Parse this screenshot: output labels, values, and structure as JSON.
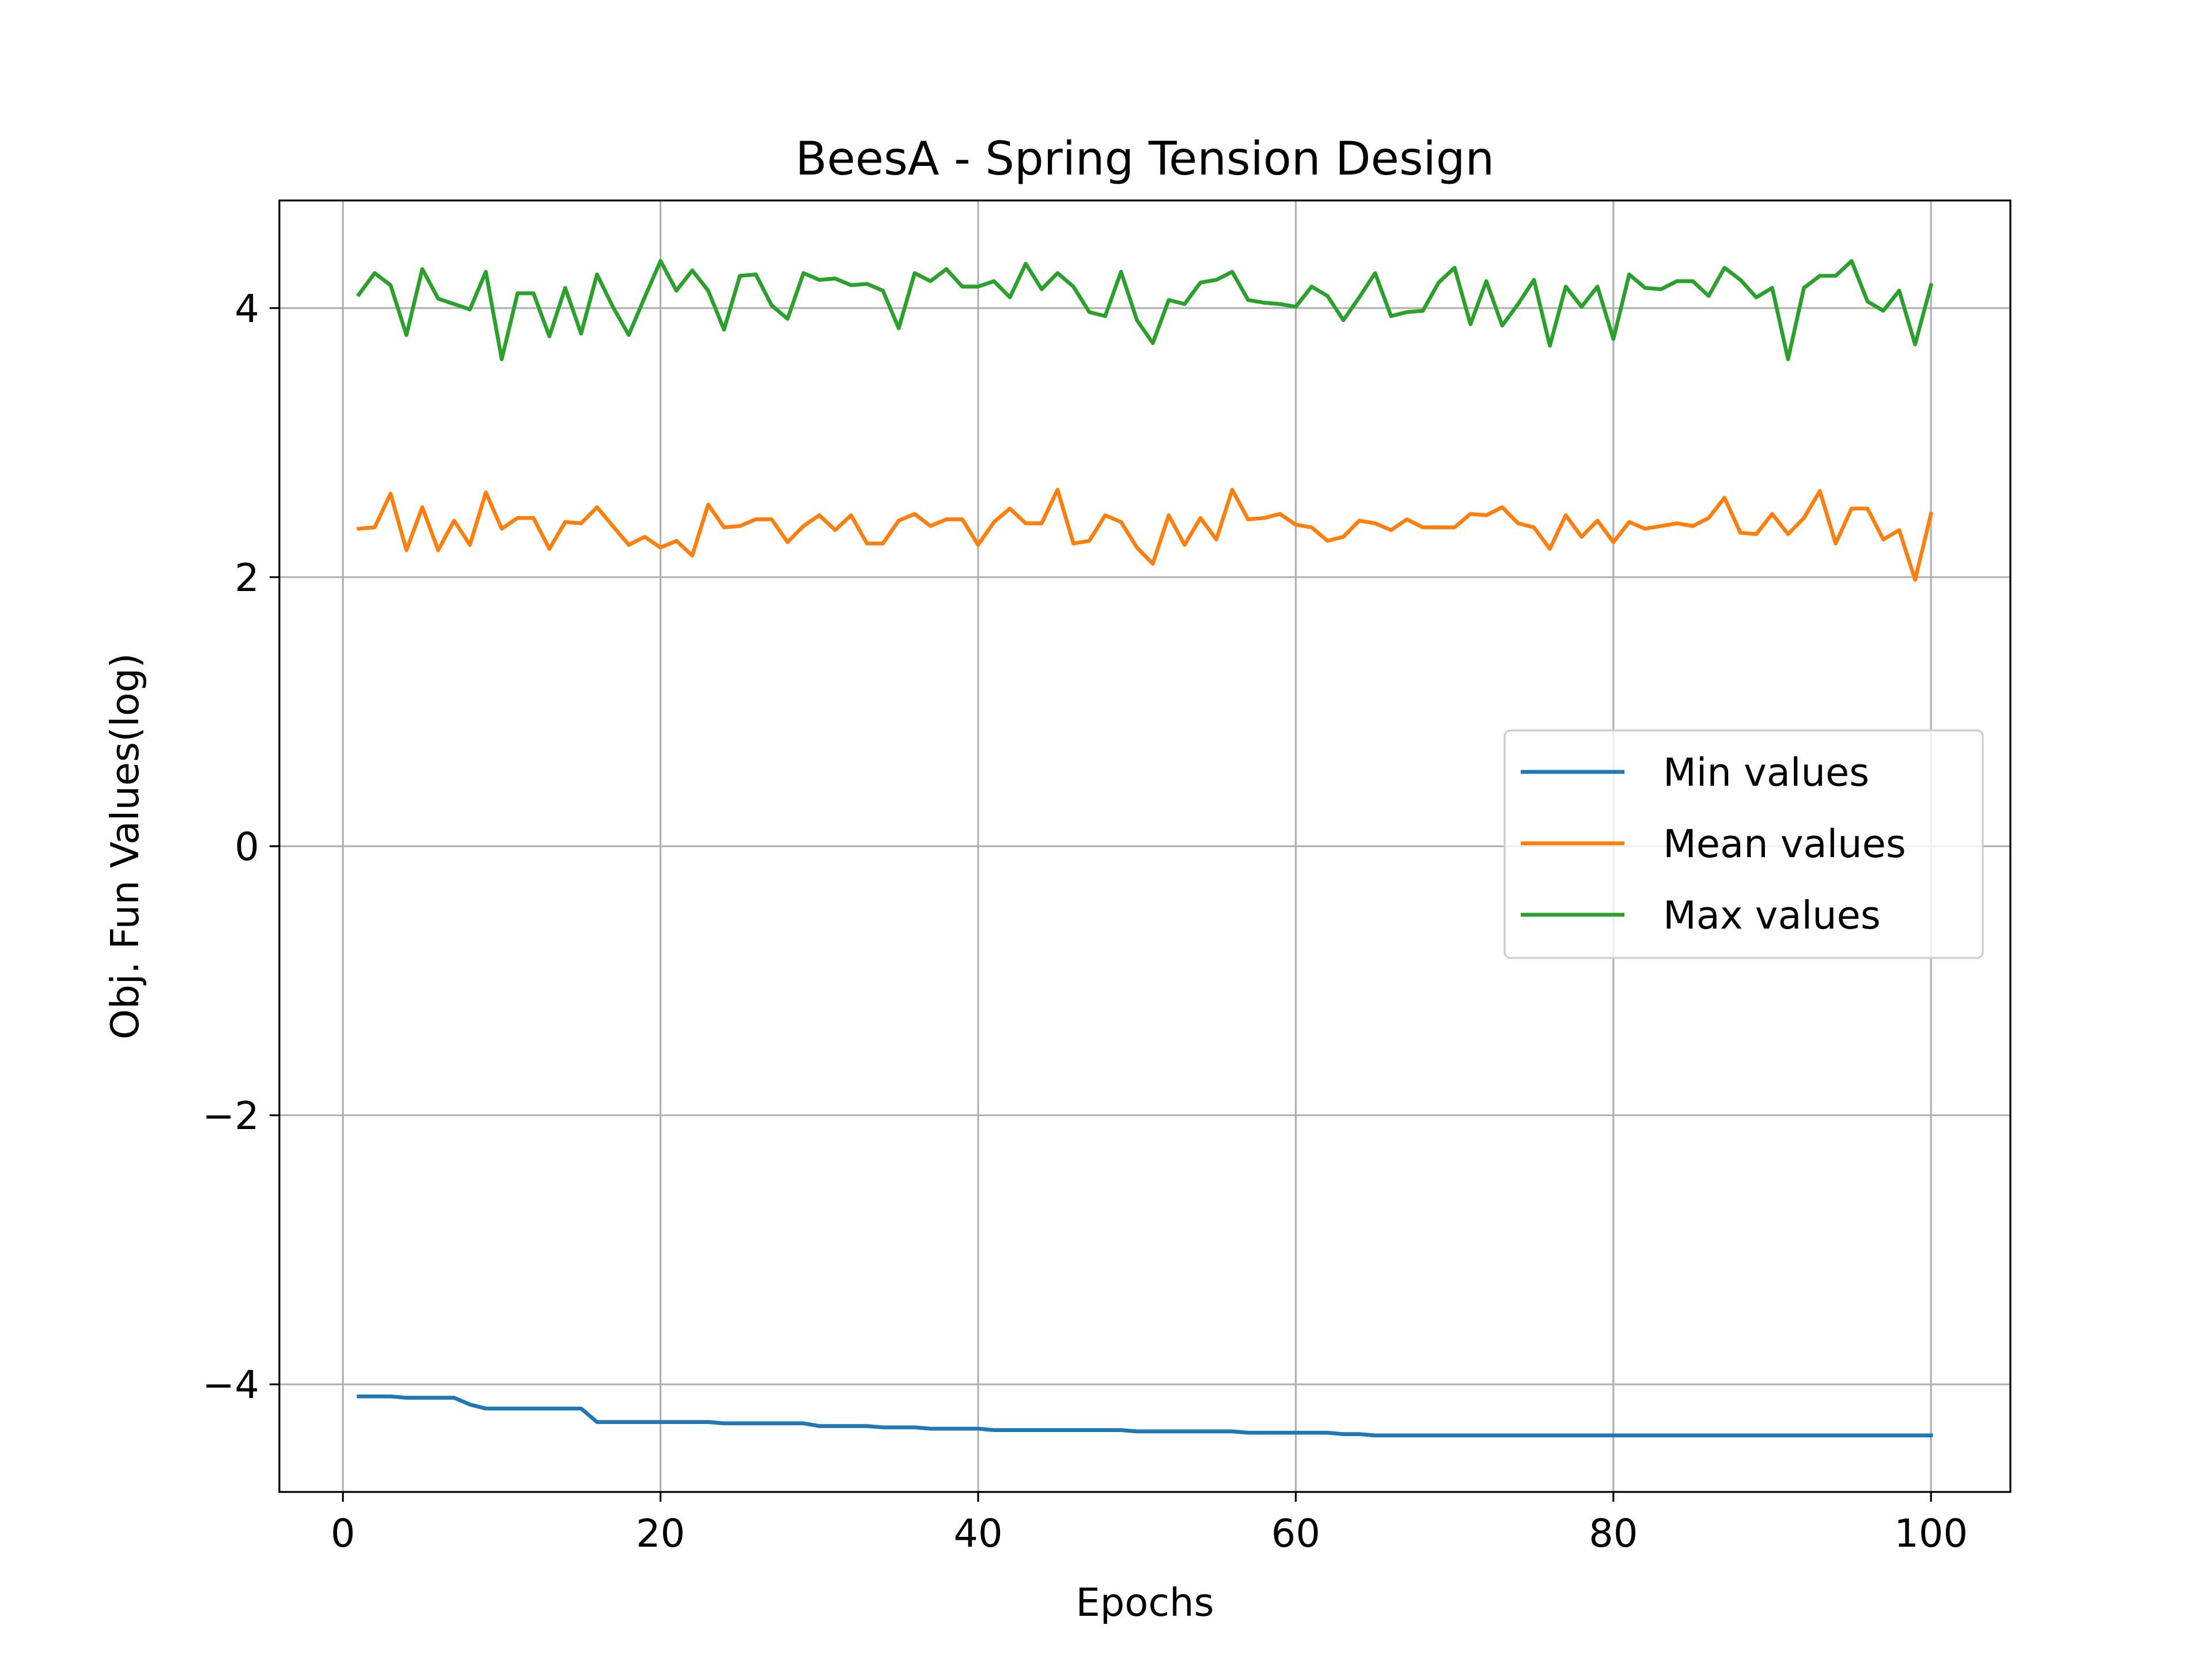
{
  "chart_data": {
    "type": "line",
    "title": "BeesA - Spring Tension Design",
    "xlabel": "Epochs",
    "ylabel": "Obj. Fun Values(log)",
    "xlim": [
      -4,
      105
    ],
    "ylim": [
      -4.8,
      4.8
    ],
    "xticks": [
      0,
      20,
      40,
      60,
      80,
      100
    ],
    "yticks": [
      -4,
      -2,
      0,
      2,
      4
    ],
    "grid": true,
    "legend_position": "center-right",
    "x": [
      1,
      2,
      3,
      4,
      5,
      6,
      7,
      8,
      9,
      10,
      11,
      12,
      13,
      14,
      15,
      16,
      17,
      18,
      19,
      20,
      21,
      22,
      23,
      24,
      25,
      26,
      27,
      28,
      29,
      30,
      31,
      32,
      33,
      34,
      35,
      36,
      37,
      38,
      39,
      40,
      41,
      42,
      43,
      44,
      45,
      46,
      47,
      48,
      49,
      50,
      51,
      52,
      53,
      54,
      55,
      56,
      57,
      58,
      59,
      60,
      61,
      62,
      63,
      64,
      65,
      66,
      67,
      68,
      69,
      70,
      71,
      72,
      73,
      74,
      75,
      76,
      77,
      78,
      79,
      80,
      81,
      82,
      83,
      84,
      85,
      86,
      87,
      88,
      89,
      90,
      91,
      92,
      93,
      94,
      95,
      96,
      97,
      98,
      99,
      100
    ],
    "series": [
      {
        "name": "Min values",
        "color": "#1f77b4",
        "values": [
          -4.09,
          -4.09,
          -4.09,
          -4.1,
          -4.1,
          -4.1,
          -4.1,
          -4.15,
          -4.18,
          -4.18,
          -4.18,
          -4.18,
          -4.18,
          -4.18,
          -4.18,
          -4.28,
          -4.28,
          -4.28,
          -4.28,
          -4.28,
          -4.28,
          -4.28,
          -4.28,
          -4.29,
          -4.29,
          -4.29,
          -4.29,
          -4.29,
          -4.29,
          -4.31,
          -4.31,
          -4.31,
          -4.31,
          -4.32,
          -4.32,
          -4.32,
          -4.33,
          -4.33,
          -4.33,
          -4.33,
          -4.34,
          -4.34,
          -4.34,
          -4.34,
          -4.34,
          -4.34,
          -4.34,
          -4.34,
          -4.34,
          -4.35,
          -4.35,
          -4.35,
          -4.35,
          -4.35,
          -4.35,
          -4.35,
          -4.36,
          -4.36,
          -4.36,
          -4.36,
          -4.36,
          -4.36,
          -4.37,
          -4.37,
          -4.38,
          -4.38,
          -4.38,
          -4.38,
          -4.38,
          -4.38,
          -4.38,
          -4.38,
          -4.38,
          -4.38,
          -4.38,
          -4.38,
          -4.38,
          -4.38,
          -4.38,
          -4.38,
          -4.38,
          -4.38,
          -4.38,
          -4.38,
          -4.38,
          -4.38,
          -4.38,
          -4.38,
          -4.38,
          -4.38,
          -4.38,
          -4.38,
          -4.38,
          -4.38,
          -4.38,
          -4.38,
          -4.38,
          -4.38,
          -4.38,
          -4.38
        ]
      },
      {
        "name": "Mean values",
        "color": "#ff7f0e",
        "values": [
          2.36,
          2.37,
          2.62,
          2.2,
          2.52,
          2.2,
          2.42,
          2.24,
          2.63,
          2.36,
          2.44,
          2.44,
          2.21,
          2.41,
          2.4,
          2.52,
          2.38,
          2.24,
          2.3,
          2.22,
          2.27,
          2.16,
          2.54,
          2.37,
          2.38,
          2.43,
          2.43,
          2.26,
          2.38,
          2.46,
          2.35,
          2.46,
          2.25,
          2.25,
          2.42,
          2.47,
          2.38,
          2.43,
          2.43,
          2.24,
          2.41,
          2.51,
          2.4,
          2.4,
          2.65,
          2.25,
          2.27,
          2.46,
          2.41,
          2.22,
          2.1,
          2.46,
          2.24,
          2.44,
          2.28,
          2.65,
          2.43,
          2.44,
          2.47,
          2.39,
          2.37,
          2.27,
          2.3,
          2.42,
          2.4,
          2.35,
          2.43,
          2.37,
          2.37,
          2.37,
          2.47,
          2.46,
          2.52,
          2.4,
          2.37,
          2.21,
          2.46,
          2.3,
          2.42,
          2.26,
          2.41,
          2.36,
          2.38,
          2.4,
          2.38,
          2.44,
          2.59,
          2.33,
          2.32,
          2.47,
          2.32,
          2.44,
          2.64,
          2.25,
          2.51,
          2.51,
          2.28,
          2.35,
          1.98,
          2.47
        ]
      },
      {
        "name": "Max values",
        "color": "#2ca02c",
        "values": [
          4.1,
          4.26,
          4.17,
          3.8,
          4.29,
          4.07,
          4.03,
          3.99,
          4.27,
          3.62,
          4.11,
          4.11,
          3.79,
          4.15,
          3.81,
          4.25,
          4.01,
          3.8,
          4.08,
          4.35,
          4.13,
          4.28,
          4.13,
          3.84,
          4.24,
          4.25,
          4.02,
          3.92,
          4.26,
          4.21,
          4.22,
          4.17,
          4.18,
          4.13,
          3.85,
          4.26,
          4.2,
          4.29,
          4.16,
          4.16,
          4.2,
          4.08,
          4.33,
          4.14,
          4.26,
          4.16,
          3.97,
          3.94,
          4.27,
          3.91,
          3.74,
          4.06,
          4.03,
          4.19,
          4.21,
          4.27,
          4.06,
          4.04,
          4.03,
          4.01,
          4.16,
          4.09,
          3.91,
          4.08,
          4.26,
          3.94,
          3.97,
          3.98,
          4.19,
          4.3,
          3.88,
          4.2,
          3.87,
          4.03,
          4.21,
          3.72,
          4.16,
          4.01,
          4.16,
          3.77,
          4.25,
          4.15,
          4.14,
          4.2,
          4.2,
          4.09,
          4.3,
          4.21,
          4.08,
          4.15,
          3.62,
          4.15,
          4.24,
          4.24,
          4.35,
          4.05,
          3.98,
          4.13,
          3.73,
          4.17
        ]
      }
    ]
  }
}
